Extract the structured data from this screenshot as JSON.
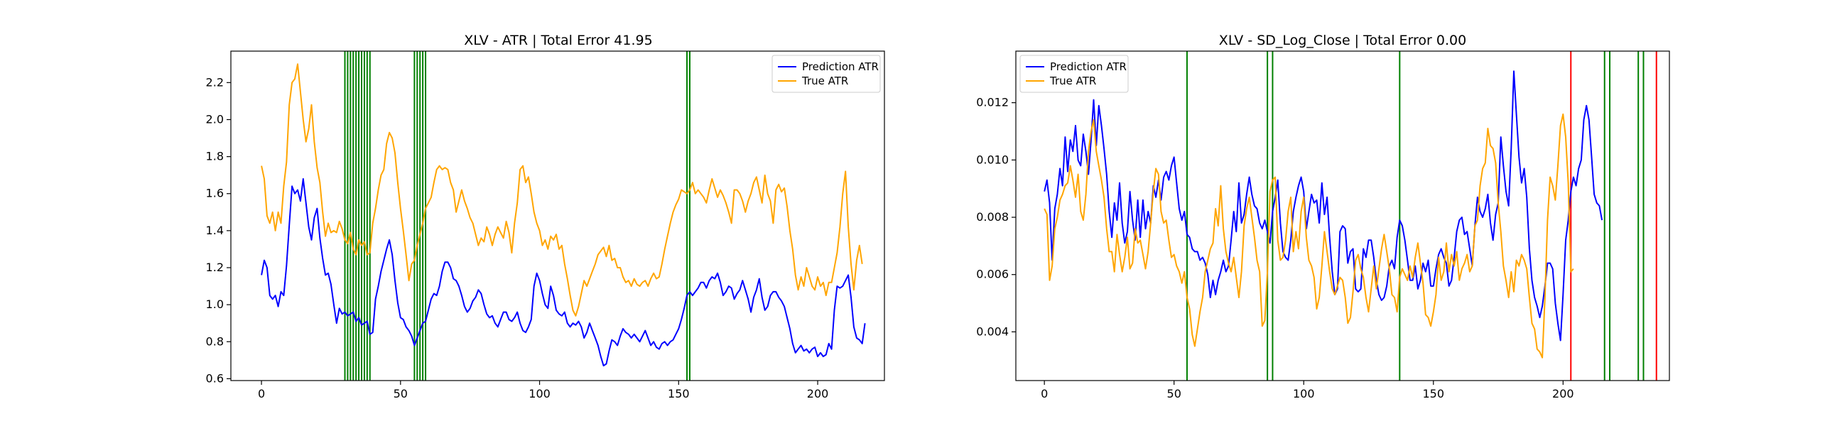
{
  "chart_data": [
    {
      "type": "line",
      "title": "XLV - ATR | Total Error 41.95",
      "xlabel": "",
      "ylabel": "",
      "xlim": [
        -11,
        224
      ],
      "ylim": [
        0.59,
        2.37
      ],
      "xticks": [
        0,
        50,
        100,
        150,
        200
      ],
      "yticks": [
        0.6,
        0.8,
        1.0,
        1.2,
        1.4,
        1.6,
        1.8,
        2.0,
        2.2
      ],
      "ytick_decimals": 1,
      "grid": false,
      "legend_position": "upper right",
      "series": [
        {
          "name": "Prediction ATR",
          "color": "#0000ff",
          "x_start": 0,
          "values": [
            1.16,
            1.24,
            1.2,
            1.05,
            1.03,
            1.05,
            0.99,
            1.07,
            1.05,
            1.21,
            1.43,
            1.64,
            1.6,
            1.62,
            1.56,
            1.68,
            1.55,
            1.42,
            1.35,
            1.47,
            1.52,
            1.36,
            1.25,
            1.16,
            1.17,
            1.11,
            1.0,
            0.9,
            0.98,
            0.95,
            0.96,
            0.94,
            0.95,
            0.96,
            0.91,
            0.93,
            0.89,
            0.9,
            0.91,
            0.84,
            0.85,
            1.03,
            1.1,
            1.18,
            1.24,
            1.3,
            1.35,
            1.27,
            1.13,
            1.01,
            0.93,
            0.92,
            0.88,
            0.86,
            0.83,
            0.78,
            0.82,
            0.86,
            0.9,
            0.91,
            0.97,
            1.03,
            1.06,
            1.05,
            1.1,
            1.18,
            1.23,
            1.23,
            1.2,
            1.14,
            1.13,
            1.1,
            1.05,
            0.99,
            0.96,
            0.98,
            1.02,
            1.04,
            1.08,
            1.06,
            1.0,
            0.95,
            0.93,
            0.94,
            0.9,
            0.88,
            0.92,
            0.96,
            0.96,
            0.92,
            0.91,
            0.93,
            0.96,
            0.9,
            0.86,
            0.85,
            0.88,
            0.92,
            1.1,
            1.17,
            1.13,
            1.06,
            1.0,
            0.98,
            1.1,
            1.05,
            0.97,
            0.95,
            0.94,
            0.96,
            0.9,
            0.88,
            0.9,
            0.89,
            0.91,
            0.88,
            0.82,
            0.85,
            0.9,
            0.86,
            0.82,
            0.78,
            0.72,
            0.67,
            0.68,
            0.75,
            0.81,
            0.8,
            0.78,
            0.83,
            0.87,
            0.85,
            0.84,
            0.82,
            0.84,
            0.82,
            0.8,
            0.83,
            0.86,
            0.82,
            0.78,
            0.8,
            0.77,
            0.76,
            0.79,
            0.8,
            0.78,
            0.8,
            0.81,
            0.84,
            0.87,
            0.92,
            0.98,
            1.05,
            1.07,
            1.05,
            1.07,
            1.09,
            1.12,
            1.12,
            1.09,
            1.13,
            1.15,
            1.14,
            1.17,
            1.12,
            1.05,
            1.07,
            1.1,
            1.09,
            1.03,
            1.06,
            1.08,
            1.13,
            1.08,
            1.03,
            0.96,
            1.04,
            1.08,
            1.14,
            1.04,
            0.97,
            0.99,
            1.05,
            1.07,
            1.07,
            1.04,
            1.02,
            0.99,
            0.93,
            0.87,
            0.79,
            0.74,
            0.76,
            0.78,
            0.75,
            0.76,
            0.74,
            0.76,
            0.77,
            0.72,
            0.74,
            0.72,
            0.73,
            0.79,
            0.76,
            0.97,
            1.1,
            1.09,
            1.1,
            1.13,
            1.16,
            1.04,
            0.88,
            0.82,
            0.81,
            0.79,
            0.9
          ]
        },
        {
          "name": "True ATR",
          "color": "#ffa500",
          "x_start": 0,
          "values": [
            1.75,
            1.68,
            1.48,
            1.44,
            1.5,
            1.4,
            1.5,
            1.44,
            1.64,
            1.77,
            2.08,
            2.2,
            2.22,
            2.3,
            2.15,
            2.0,
            1.88,
            1.95,
            2.08,
            1.88,
            1.74,
            1.66,
            1.5,
            1.37,
            1.44,
            1.39,
            1.4,
            1.39,
            1.45,
            1.41,
            1.35,
            1.33,
            1.39,
            1.3,
            1.27,
            1.35,
            1.32,
            1.34,
            1.27,
            1.28,
            1.44,
            1.52,
            1.62,
            1.7,
            1.73,
            1.87,
            1.93,
            1.9,
            1.82,
            1.66,
            1.52,
            1.4,
            1.27,
            1.13,
            1.22,
            1.24,
            1.32,
            1.38,
            1.44,
            1.52,
            1.55,
            1.58,
            1.66,
            1.73,
            1.75,
            1.73,
            1.74,
            1.73,
            1.66,
            1.62,
            1.5,
            1.56,
            1.62,
            1.56,
            1.52,
            1.47,
            1.44,
            1.38,
            1.32,
            1.36,
            1.34,
            1.42,
            1.38,
            1.32,
            1.38,
            1.42,
            1.39,
            1.36,
            1.45,
            1.39,
            1.28,
            1.44,
            1.55,
            1.73,
            1.75,
            1.66,
            1.69,
            1.6,
            1.5,
            1.44,
            1.4,
            1.32,
            1.35,
            1.3,
            1.37,
            1.35,
            1.38,
            1.3,
            1.32,
            1.22,
            1.14,
            1.05,
            0.97,
            0.94,
            0.99,
            1.06,
            1.13,
            1.1,
            1.14,
            1.18,
            1.22,
            1.27,
            1.29,
            1.31,
            1.26,
            1.32,
            1.24,
            1.25,
            1.2,
            1.2,
            1.15,
            1.12,
            1.13,
            1.1,
            1.14,
            1.11,
            1.1,
            1.12,
            1.13,
            1.1,
            1.14,
            1.17,
            1.14,
            1.15,
            1.22,
            1.3,
            1.37,
            1.44,
            1.5,
            1.54,
            1.57,
            1.62,
            1.61,
            1.6,
            1.62,
            1.66,
            1.6,
            1.62,
            1.6,
            1.58,
            1.55,
            1.62,
            1.68,
            1.63,
            1.58,
            1.62,
            1.59,
            1.55,
            1.5,
            1.44,
            1.62,
            1.62,
            1.6,
            1.56,
            1.5,
            1.56,
            1.6,
            1.66,
            1.69,
            1.62,
            1.55,
            1.7,
            1.6,
            1.56,
            1.44,
            1.62,
            1.65,
            1.61,
            1.63,
            1.53,
            1.4,
            1.3,
            1.16,
            1.08,
            1.15,
            1.1,
            1.2,
            1.15,
            1.1,
            1.08,
            1.15,
            1.1,
            1.12,
            1.05,
            1.12,
            1.12,
            1.2,
            1.28,
            1.42,
            1.6,
            1.72,
            1.42,
            1.22,
            1.08,
            1.24,
            1.32,
            1.22
          ]
        }
      ],
      "vlines": [
        {
          "color": "#008000",
          "x": [
            30,
            31,
            32,
            33,
            34,
            35,
            36,
            37,
            38,
            39
          ]
        },
        {
          "color": "#008000",
          "x": [
            55,
            56,
            57,
            58,
            59
          ]
        },
        {
          "color": "#008000",
          "x": [
            153,
            154
          ]
        }
      ]
    },
    {
      "type": "line",
      "title": "XLV - SD_Log_Close | Total Error 0.00",
      "xlabel": "",
      "ylabel": "",
      "xlim": [
        -11,
        241
      ],
      "ylim": [
        0.0023,
        0.0138
      ],
      "xticks": [
        0,
        50,
        100,
        150,
        200
      ],
      "yticks": [
        0.004,
        0.006,
        0.008,
        0.01,
        0.012
      ],
      "ytick_decimals": 3,
      "grid": false,
      "legend_position": "upper left",
      "series": [
        {
          "name": "Prediction ATR",
          "color": "#0000ff",
          "x_start": 0,
          "values": [
            0.0089,
            0.0093,
            0.0085,
            0.0065,
            0.0083,
            0.0088,
            0.0097,
            0.0091,
            0.0108,
            0.0096,
            0.0107,
            0.0103,
            0.0112,
            0.01,
            0.0098,
            0.0109,
            0.0103,
            0.0095,
            0.0107,
            0.0121,
            0.0105,
            0.0119,
            0.0112,
            0.0104,
            0.0095,
            0.0082,
            0.0073,
            0.0085,
            0.0079,
            0.0092,
            0.0078,
            0.0071,
            0.0075,
            0.0089,
            0.0079,
            0.0072,
            0.0086,
            0.0073,
            0.0086,
            0.0076,
            0.0082,
            0.0078,
            0.0091,
            0.0087,
            0.0093,
            0.0086,
            0.0094,
            0.0096,
            0.0093,
            0.0098,
            0.0101,
            0.0092,
            0.0083,
            0.0079,
            0.0082,
            0.0074,
            0.0073,
            0.0069,
            0.0068,
            0.0068,
            0.0065,
            0.0066,
            0.0064,
            0.006,
            0.0052,
            0.0058,
            0.0053,
            0.0058,
            0.0061,
            0.0065,
            0.0061,
            0.0063,
            0.0072,
            0.0082,
            0.0075,
            0.0092,
            0.0078,
            0.0081,
            0.0088,
            0.0094,
            0.0088,
            0.0084,
            0.0083,
            0.0078,
            0.0076,
            0.0079,
            0.0075,
            0.0071,
            0.0082,
            0.0087,
            0.0093,
            0.0078,
            0.0068,
            0.0066,
            0.0065,
            0.0072,
            0.0082,
            0.0087,
            0.0091,
            0.0094,
            0.0089,
            0.0076,
            0.0082,
            0.0088,
            0.0085,
            0.0086,
            0.0078,
            0.0092,
            0.0081,
            0.0087,
            0.0073,
            0.0061,
            0.0053,
            0.0055,
            0.0075,
            0.0077,
            0.0076,
            0.0064,
            0.0068,
            0.0069,
            0.0055,
            0.0054,
            0.0055,
            0.0069,
            0.0066,
            0.0072,
            0.0072,
            0.0066,
            0.0058,
            0.0053,
            0.0051,
            0.0052,
            0.0056,
            0.0063,
            0.0065,
            0.0062,
            0.0073,
            0.0079,
            0.0077,
            0.0072,
            0.0065,
            0.0058,
            0.0058,
            0.0063,
            0.0055,
            0.0058,
            0.0064,
            0.0061,
            0.0065,
            0.0056,
            0.0056,
            0.0062,
            0.0067,
            0.0069,
            0.0066,
            0.0064,
            0.0056,
            0.0058,
            0.0066,
            0.0075,
            0.0079,
            0.008,
            0.0074,
            0.0075,
            0.0069,
            0.0063,
            0.0077,
            0.0087,
            0.0082,
            0.008,
            0.0083,
            0.0088,
            0.0078,
            0.0072,
            0.0081,
            0.0085,
            0.0108,
            0.0098,
            0.0089,
            0.0084,
            0.0104,
            0.0131,
            0.0116,
            0.0101,
            0.0092,
            0.0097,
            0.0087,
            0.0069,
            0.0058,
            0.0052,
            0.0049,
            0.0045,
            0.0049,
            0.0056,
            0.0064,
            0.0064,
            0.0062,
            0.005,
            0.0043,
            0.0037,
            0.0053,
            0.0072,
            0.0079,
            0.0089,
            0.0094,
            0.0091,
            0.0097,
            0.01,
            0.0114,
            0.0119,
            0.0114,
            0.0101,
            0.0088,
            0.0085,
            0.0084,
            0.0079
          ]
        },
        {
          "name": "True ATR",
          "color": "#ffa500",
          "x_start": 0,
          "values": [
            0.0083,
            0.0081,
            0.0058,
            0.0063,
            0.0076,
            0.008,
            0.0086,
            0.0088,
            0.0091,
            0.0092,
            0.0098,
            0.0093,
            0.0087,
            0.0095,
            0.0082,
            0.0079,
            0.0088,
            0.0103,
            0.011,
            0.0114,
            0.0103,
            0.0098,
            0.0093,
            0.0087,
            0.0076,
            0.0068,
            0.0068,
            0.0061,
            0.0074,
            0.0067,
            0.0061,
            0.0066,
            0.0073,
            0.0062,
            0.0064,
            0.0076,
            0.0071,
            0.0072,
            0.0067,
            0.0062,
            0.0068,
            0.0078,
            0.0089,
            0.0097,
            0.0095,
            0.0082,
            0.0078,
            0.0079,
            0.0072,
            0.0066,
            0.0067,
            0.0063,
            0.0061,
            0.0057,
            0.0061,
            0.0052,
            0.0048,
            0.0039,
            0.0035,
            0.0041,
            0.0047,
            0.0052,
            0.0061,
            0.0065,
            0.0069,
            0.0071,
            0.0083,
            0.0077,
            0.0091,
            0.0076,
            0.0068,
            0.0064,
            0.0061,
            0.0066,
            0.0059,
            0.0052,
            0.0061,
            0.0077,
            0.0083,
            0.0087,
            0.008,
            0.0073,
            0.0065,
            0.0061,
            0.0042,
            0.0044,
            0.0061,
            0.0089,
            0.0093,
            0.0094,
            0.0072,
            0.0065,
            0.0066,
            0.0072,
            0.0082,
            0.0087,
            0.0068,
            0.0075,
            0.0069,
            0.0082,
            0.0087,
            0.0073,
            0.0065,
            0.0063,
            0.0059,
            0.0048,
            0.0052,
            0.0063,
            0.0075,
            0.0068,
            0.0061,
            0.0055,
            0.0053,
            0.0056,
            0.0059,
            0.0058,
            0.0052,
            0.0043,
            0.0045,
            0.0054,
            0.0065,
            0.0067,
            0.0062,
            0.0059,
            0.0052,
            0.0047,
            0.0055,
            0.0063,
            0.0055,
            0.0062,
            0.0069,
            0.0074,
            0.0068,
            0.0062,
            0.0053,
            0.0052,
            0.0047,
            0.0059,
            0.0062,
            0.006,
            0.0058,
            0.0063,
            0.0059,
            0.0066,
            0.0071,
            0.0064,
            0.0057,
            0.0046,
            0.0045,
            0.0042,
            0.0047,
            0.0053,
            0.0066,
            0.0058,
            0.0061,
            0.0071,
            0.0061,
            0.0067,
            0.0063,
            0.0068,
            0.0058,
            0.0062,
            0.0064,
            0.0067,
            0.0061,
            0.0063,
            0.0077,
            0.0079,
            0.0091,
            0.0097,
            0.0099,
            0.0111,
            0.0105,
            0.0104,
            0.0099,
            0.0085,
            0.0075,
            0.0063,
            0.0058,
            0.0052,
            0.0061,
            0.0054,
            0.0065,
            0.0063,
            0.0067,
            0.0065,
            0.0062,
            0.0052,
            0.0043,
            0.0041,
            0.0034,
            0.0033,
            0.0031,
            0.0052,
            0.0079,
            0.0094,
            0.0091,
            0.0086,
            0.0098,
            0.0112,
            0.0116,
            0.0108,
            0.0092,
            0.0061,
            0.0062
          ]
        }
      ],
      "vlines": [
        {
          "color": "#008000",
          "x": [
            55,
            86,
            88,
            137,
            216,
            218,
            229,
            231
          ]
        },
        {
          "color": "#ff0000",
          "x": [
            203,
            236
          ]
        }
      ]
    }
  ]
}
